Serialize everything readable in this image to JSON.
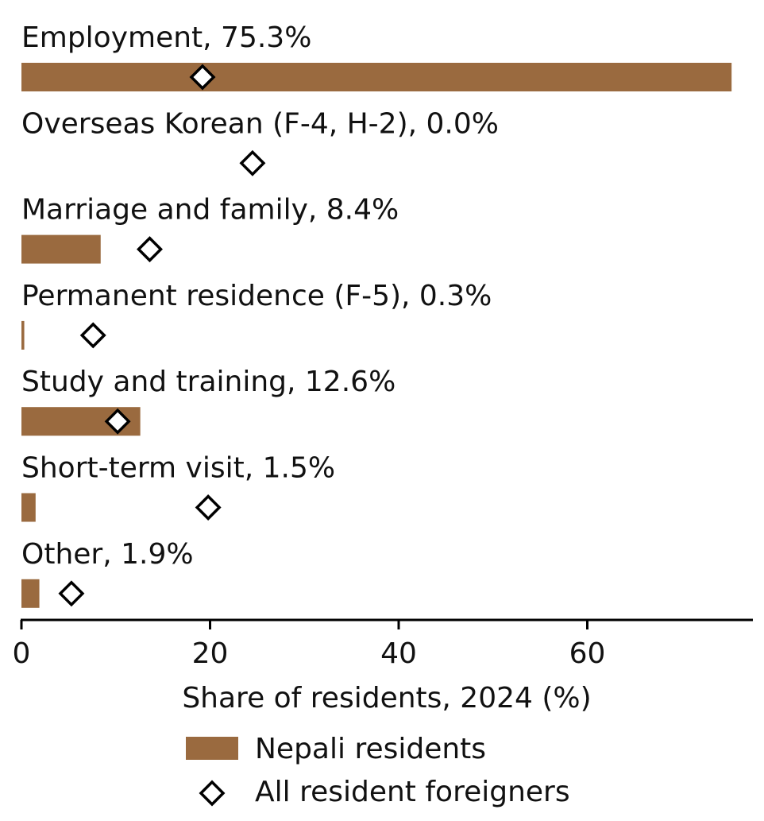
{
  "chart_data": {
    "type": "bar",
    "orientation": "horizontal",
    "categories": [
      "Employment",
      "Overseas Korean (F-4, H-2)",
      "Marriage and family",
      "Permanent residence (F-5)",
      "Study and training",
      "Short-term visit",
      "Other"
    ],
    "category_labels": [
      "Employment, 75.3%",
      "Overseas Korean (F-4, H-2), 0.0%",
      "Marriage and family, 8.4%",
      "Permanent residence (F-5), 0.3%",
      "Study and training, 12.6%",
      "Short-term visit, 1.5%",
      "Other, 1.9%"
    ],
    "series": [
      {
        "name": "Nepali residents",
        "kind": "bar",
        "values": [
          75.3,
          0.0,
          8.4,
          0.3,
          12.6,
          1.5,
          1.9
        ]
      },
      {
        "name": "All resident foreigners",
        "kind": "marker",
        "values": [
          19.2,
          24.5,
          13.6,
          7.6,
          10.2,
          19.8,
          5.3
        ]
      }
    ],
    "title": "",
    "xlabel": "Share of residents, 2024 (%)",
    "ylabel": "",
    "xlim": [
      0,
      77.5
    ],
    "xticks": [
      0,
      20,
      40,
      60
    ],
    "xtick_labels": [
      "0",
      "20",
      "40",
      "60"
    ],
    "grid": false,
    "legend_position": "bottom-center",
    "colors": {
      "bar": "#9A6A3F",
      "marker_fill": "#ffffff",
      "marker_stroke": "#000000",
      "axis": "#000000"
    }
  }
}
